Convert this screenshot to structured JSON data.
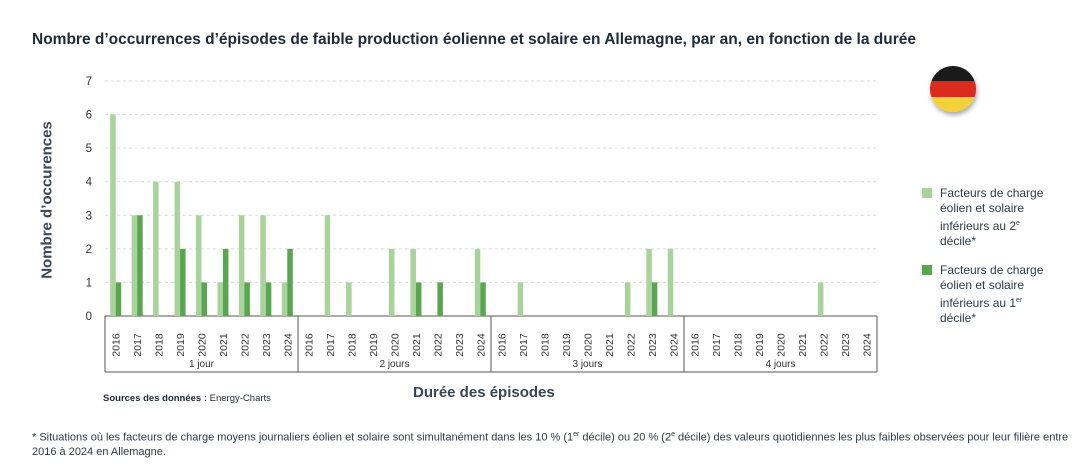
{
  "title": "Nombre d’occurrences d’épisodes de faible production éolienne et solaire en Allemagne, par an, en fonction de la durée",
  "legend": {
    "items": [
      {
        "pre": "Facteurs de charge éolien et solaire inférieurs au 2",
        "sup": "e",
        "post": " décile*",
        "color": "#a8d39b"
      },
      {
        "pre": "Facteurs de charge éolien et solaire inférieurs au 1",
        "sup": "er",
        "post": " décile*",
        "color": "#5aa650"
      }
    ]
  },
  "source": {
    "label": "Sources des données :",
    "value": "Energy-Charts"
  },
  "footnote": {
    "p1": "* Situations où les facteurs de charge moyens journaliers éolien et solaire sont simultanément dans les 10 % (1",
    "s1": "er",
    "p2": " décile) ou 20 % (2",
    "s2": "e",
    "p3": " décile) des valeurs quotidiennes les plus faibles observées pour leur filière entre 2016 à 2024 en Allemagne."
  },
  "chart_data": {
    "type": "bar",
    "title": "Nombre d’occurrences d’épisodes de faible production éolienne et solaire en Allemagne, par an, en fonction de la durée",
    "xlabel": "Durée des épisodes",
    "ylabel": "Nombre d’occurences",
    "ylim": [
      0,
      7
    ],
    "yticks": [
      "0",
      "1",
      "2",
      "3",
      "4",
      "5",
      "6",
      "7"
    ],
    "grid": true,
    "legend_position": "right",
    "years": [
      "2016",
      "2017",
      "2018",
      "2019",
      "2020",
      "2021",
      "2022",
      "2023",
      "2024"
    ],
    "groups": [
      "1 jour",
      "2 jours",
      "3 jours",
      "4 jours"
    ],
    "series": [
      {
        "name": "Facteurs de charge éolien et solaire inférieurs au 2e décile*",
        "color": "#a8d39b",
        "values": [
          [
            6,
            3,
            4,
            4,
            3,
            1,
            3,
            3,
            1
          ],
          [
            0,
            3,
            1,
            0,
            2,
            2,
            0,
            0,
            2
          ],
          [
            0,
            1,
            0,
            0,
            0,
            0,
            1,
            2,
            2
          ],
          [
            0,
            0,
            0,
            0,
            0,
            0,
            1,
            0,
            0
          ]
        ]
      },
      {
        "name": "Facteurs de charge éolien et solaire inférieurs au 1er décile*",
        "color": "#5aa650",
        "values": [
          [
            1,
            3,
            0,
            2,
            1,
            2,
            1,
            1,
            2
          ],
          [
            0,
            0,
            0,
            0,
            0,
            1,
            1,
            0,
            1
          ],
          [
            0,
            0,
            0,
            0,
            0,
            0,
            0,
            1,
            0
          ],
          [
            0,
            0,
            0,
            0,
            0,
            0,
            0,
            0,
            0
          ]
        ]
      }
    ]
  },
  "flag": {
    "colors": [
      "#1a1a1a",
      "#dd2a1f",
      "#f5cf3c"
    ]
  }
}
